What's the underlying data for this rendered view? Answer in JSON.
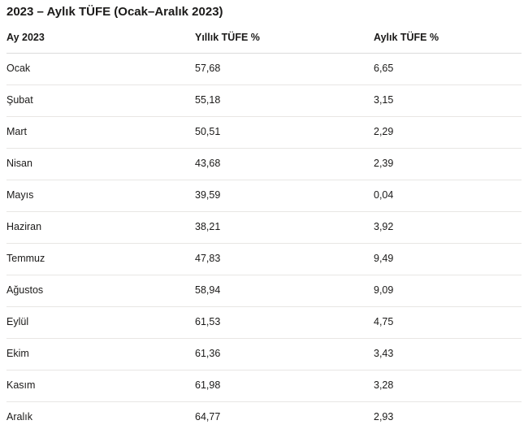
{
  "title": "2023 – Aylık TÜFE (Ocak–Aralık 2023)",
  "colors": {
    "text": "#1b1a19",
    "header_divider": "#dcdcdc",
    "row_divider": "#e8e6e4",
    "background": "#ffffff"
  },
  "table": {
    "columns": [
      "Ay 2023",
      "Yıllık TÜFE %",
      "Aylık TÜFE %"
    ],
    "rows": [
      {
        "month": "Ocak",
        "yearly": "57,68",
        "monthly": "6,65"
      },
      {
        "month": "Şubat",
        "yearly": "55,18",
        "monthly": "3,15"
      },
      {
        "month": "Mart",
        "yearly": "50,51",
        "monthly": "2,29"
      },
      {
        "month": "Nisan",
        "yearly": "43,68",
        "monthly": "2,39"
      },
      {
        "month": "Mayıs",
        "yearly": "39,59",
        "monthly": "0,04"
      },
      {
        "month": "Haziran",
        "yearly": "38,21",
        "monthly": "3,92"
      },
      {
        "month": "Temmuz",
        "yearly": "47,83",
        "monthly": "9,49"
      },
      {
        "month": "Ağustos",
        "yearly": "58,94",
        "monthly": "9,09"
      },
      {
        "month": "Eylül",
        "yearly": "61,53",
        "monthly": "4,75"
      },
      {
        "month": "Ekim",
        "yearly": "61,36",
        "monthly": "3,43"
      },
      {
        "month": "Kasım",
        "yearly": "61,98",
        "monthly": "3,28"
      },
      {
        "month": "Aralık",
        "yearly": "64,77",
        "monthly": "2,93"
      }
    ]
  },
  "chart_data": {
    "type": "table",
    "title": "2023 – Aylık TÜFE (Ocak–Aralık 2023)",
    "columns": [
      "Ay 2023",
      "Yıllık TÜFE %",
      "Aylık TÜFE %"
    ],
    "categories": [
      "Ocak",
      "Şubat",
      "Mart",
      "Nisan",
      "Mayıs",
      "Haziran",
      "Temmuz",
      "Ağustos",
      "Eylül",
      "Ekim",
      "Kasım",
      "Aralık"
    ],
    "series": [
      {
        "name": "Yıllık TÜFE %",
        "values": [
          57.68,
          55.18,
          50.51,
          43.68,
          39.59,
          38.21,
          47.83,
          58.94,
          61.53,
          61.36,
          61.98,
          64.77
        ]
      },
      {
        "name": "Aylık TÜFE %",
        "values": [
          6.65,
          3.15,
          2.29,
          2.39,
          0.04,
          3.92,
          9.49,
          9.09,
          4.75,
          3.43,
          3.28,
          2.93
        ]
      }
    ],
    "layout": {
      "grid": "horizontal-row-dividers",
      "legend": "none"
    }
  }
}
